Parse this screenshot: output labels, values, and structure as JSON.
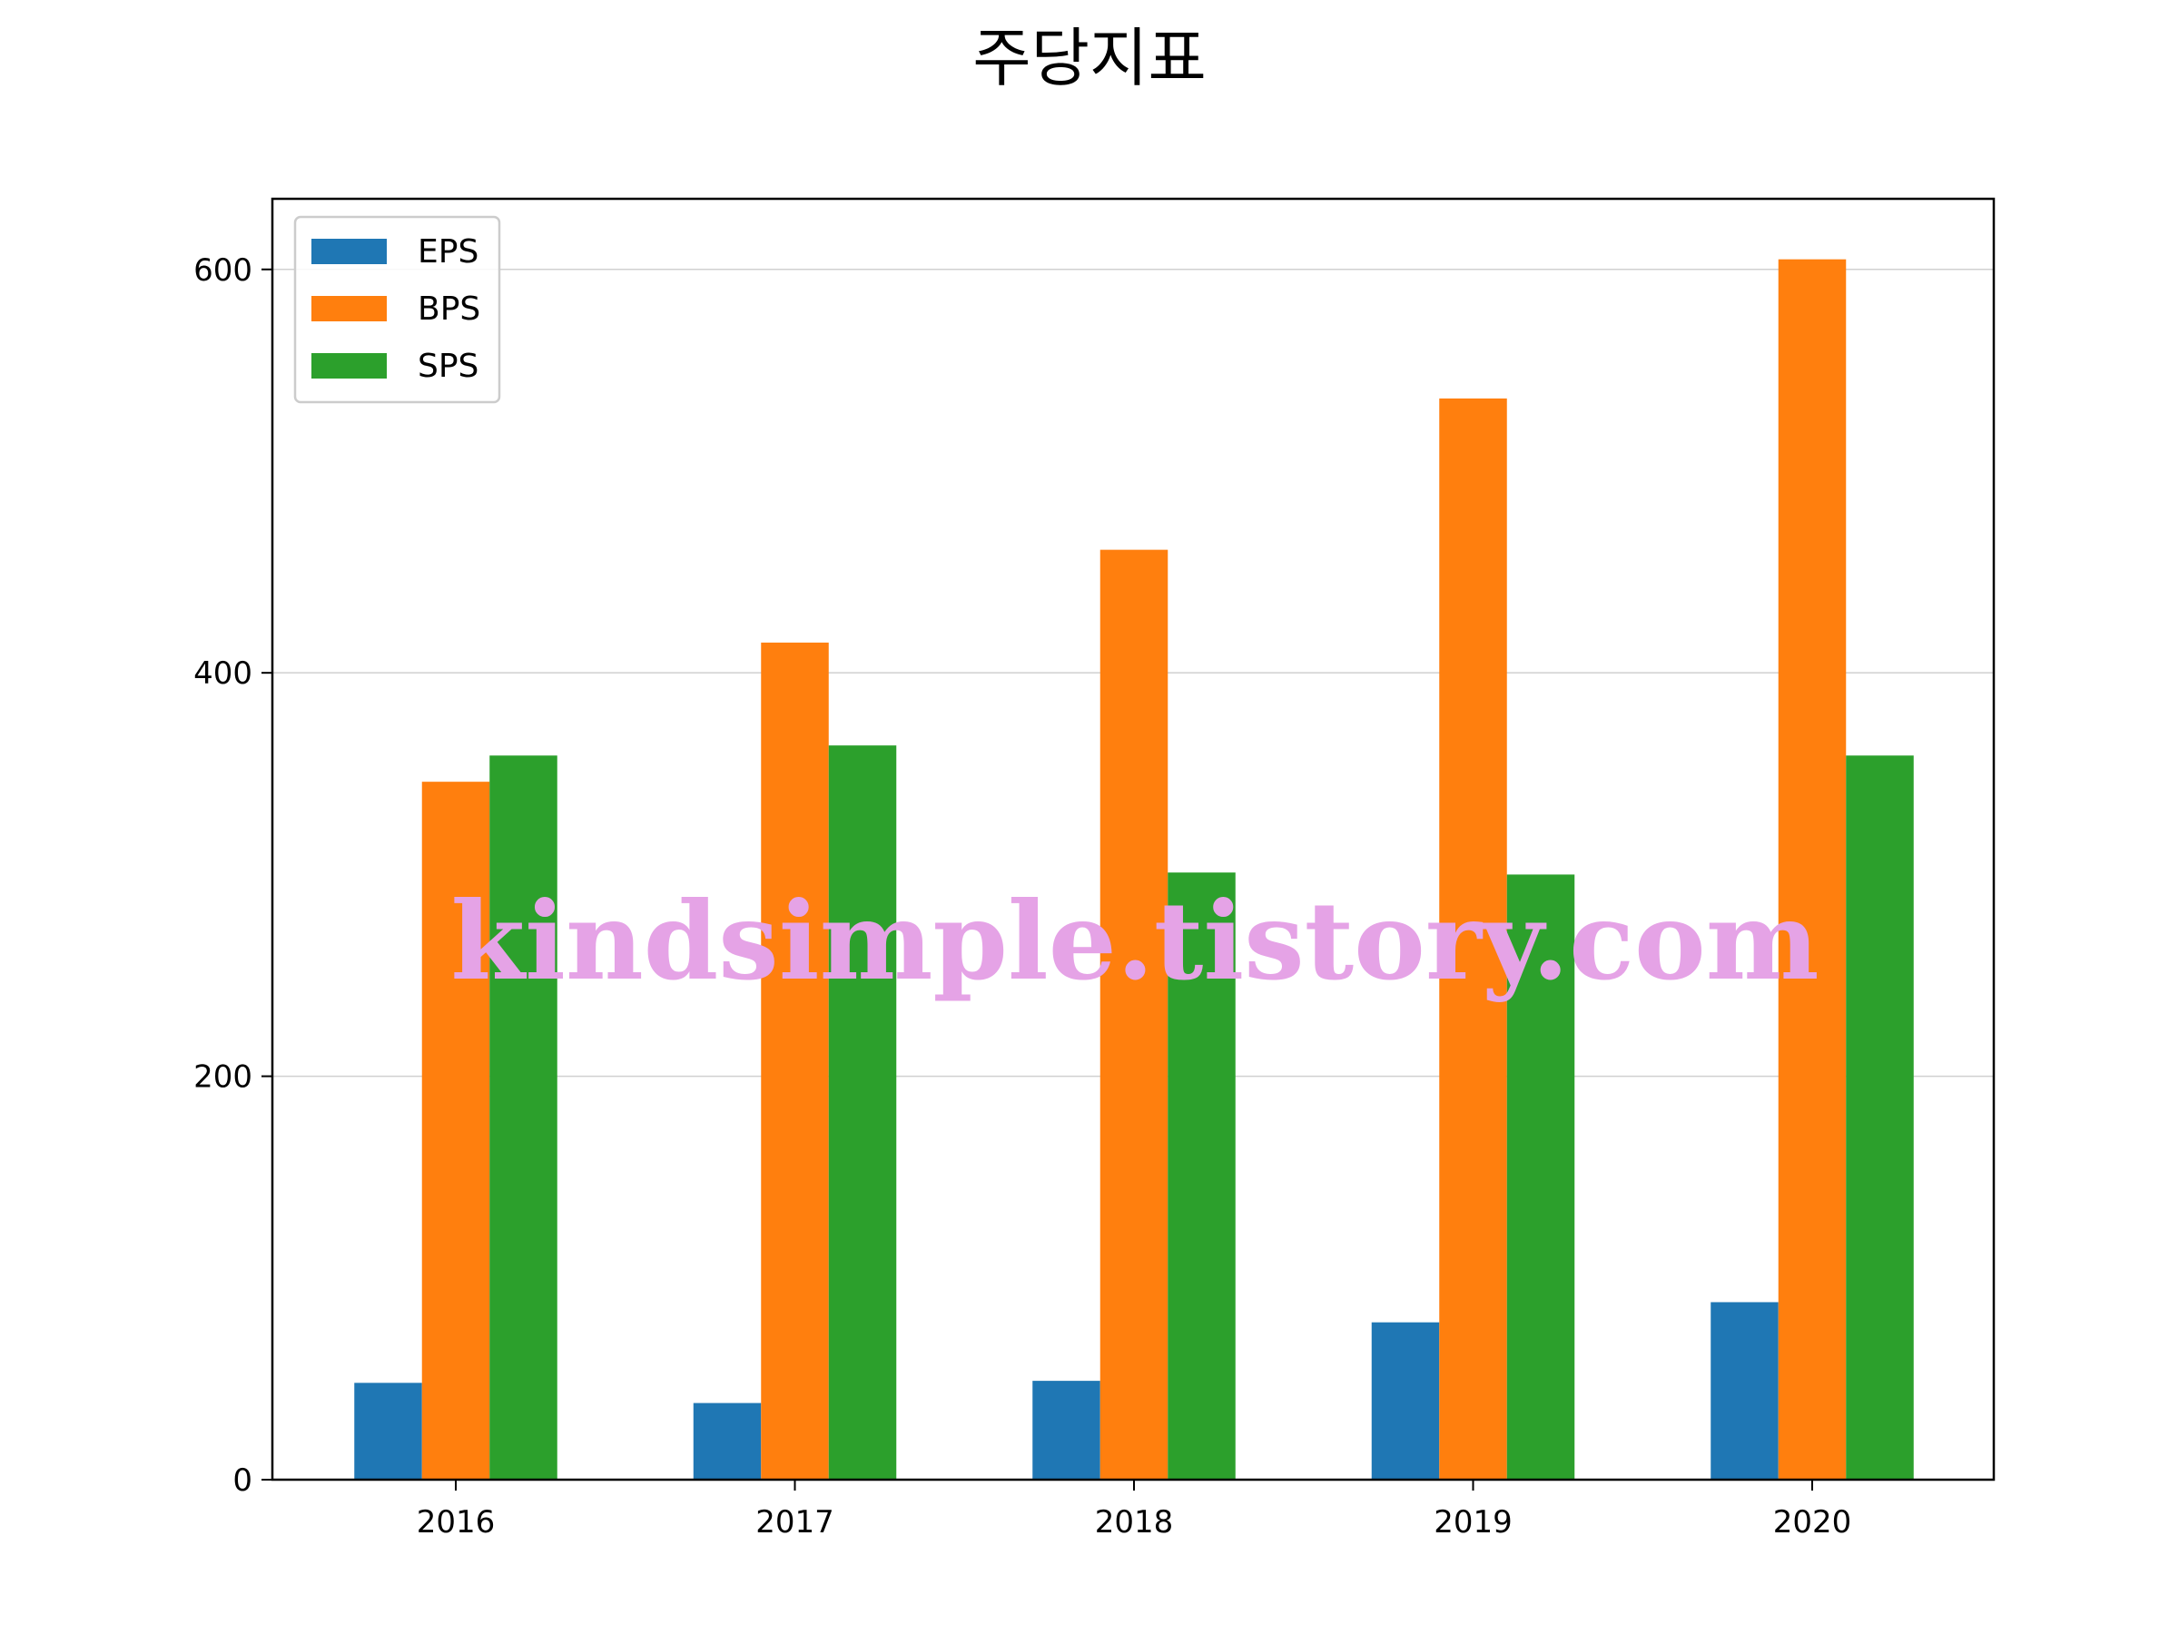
{
  "chart_data": {
    "type": "bar",
    "title": "주당지표",
    "categories": [
      "2016",
      "2017",
      "2018",
      "2019",
      "2020"
    ],
    "series": [
      {
        "name": "EPS",
        "color": "#1f77b4",
        "values": [
          48,
          38,
          49,
          78,
          88
        ]
      },
      {
        "name": "BPS",
        "color": "#ff7f0e",
        "values": [
          346,
          415,
          461,
          536,
          605
        ]
      },
      {
        "name": "SPS",
        "color": "#2ca02c",
        "values": [
          359,
          364,
          301,
          300,
          359
        ]
      }
    ],
    "ylim": [
      0,
      635
    ],
    "yticks": [
      0,
      200,
      400,
      600
    ],
    "grid": "horizontal",
    "legend": "top-left",
    "xlabel": "",
    "ylabel": ""
  },
  "watermark": "kindsimple.tistory.com"
}
